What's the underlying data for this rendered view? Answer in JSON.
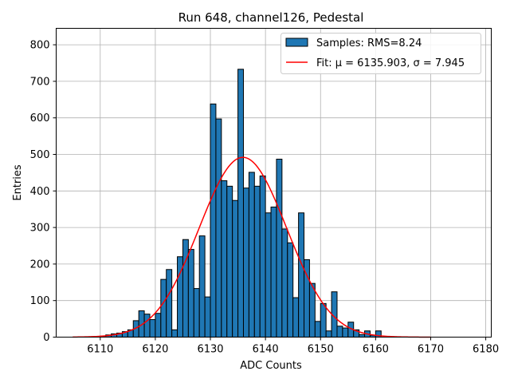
{
  "chart_data": {
    "type": "bar",
    "title": "Run 648, channel126, Pedestal",
    "xlabel": "ADC Counts",
    "ylabel": "Entries",
    "xlim": [
      6102,
      6181
    ],
    "ylim": [
      0,
      845
    ],
    "xticks": [
      6110,
      6120,
      6130,
      6140,
      6150,
      6160,
      6170,
      6180
    ],
    "yticks": [
      0,
      100,
      200,
      300,
      400,
      500,
      600,
      700,
      800
    ],
    "grid": true,
    "legend_position": "top-right",
    "bin_width": 1,
    "colors": {
      "bars": "#1f77b4",
      "bar_edge": "#000000",
      "fit": "#ff0000",
      "grid": "#b0b0b0"
    },
    "histogram": {
      "name": "Samples: RMS=8.24",
      "bins": [
        {
          "x": 6110,
          "value": 3
        },
        {
          "x": 6111,
          "value": 6
        },
        {
          "x": 6112,
          "value": 9
        },
        {
          "x": 6113,
          "value": 11
        },
        {
          "x": 6114,
          "value": 15
        },
        {
          "x": 6115,
          "value": 20
        },
        {
          "x": 6116,
          "value": 45
        },
        {
          "x": 6117,
          "value": 72
        },
        {
          "x": 6118,
          "value": 63
        },
        {
          "x": 6119,
          "value": 48
        },
        {
          "x": 6120,
          "value": 65
        },
        {
          "x": 6121,
          "value": 158
        },
        {
          "x": 6122,
          "value": 185
        },
        {
          "x": 6123,
          "value": 20
        },
        {
          "x": 6124,
          "value": 220
        },
        {
          "x": 6125,
          "value": 267
        },
        {
          "x": 6126,
          "value": 240
        },
        {
          "x": 6127,
          "value": 133
        },
        {
          "x": 6128,
          "value": 277
        },
        {
          "x": 6129,
          "value": 110
        },
        {
          "x": 6130,
          "value": 638
        },
        {
          "x": 6131,
          "value": 597
        },
        {
          "x": 6132,
          "value": 428
        },
        {
          "x": 6133,
          "value": 413
        },
        {
          "x": 6134,
          "value": 374
        },
        {
          "x": 6135,
          "value": 733
        },
        {
          "x": 6136,
          "value": 408
        },
        {
          "x": 6137,
          "value": 451
        },
        {
          "x": 6138,
          "value": 413
        },
        {
          "x": 6139,
          "value": 441
        },
        {
          "x": 6140,
          "value": 340
        },
        {
          "x": 6141,
          "value": 356
        },
        {
          "x": 6142,
          "value": 487
        },
        {
          "x": 6143,
          "value": 296
        },
        {
          "x": 6144,
          "value": 258
        },
        {
          "x": 6145,
          "value": 108
        },
        {
          "x": 6146,
          "value": 340
        },
        {
          "x": 6147,
          "value": 212
        },
        {
          "x": 6148,
          "value": 147
        },
        {
          "x": 6149,
          "value": 43
        },
        {
          "x": 6150,
          "value": 92
        },
        {
          "x": 6151,
          "value": 17
        },
        {
          "x": 6152,
          "value": 124
        },
        {
          "x": 6153,
          "value": 30
        },
        {
          "x": 6154,
          "value": 25
        },
        {
          "x": 6155,
          "value": 41
        },
        {
          "x": 6156,
          "value": 20
        },
        {
          "x": 6157,
          "value": 7
        },
        {
          "x": 6158,
          "value": 17
        },
        {
          "x": 6159,
          "value": 5
        },
        {
          "x": 6160,
          "value": 17
        }
      ]
    },
    "fit": {
      "name": "Fit: μ = 6135.903, σ = 7.945",
      "mu": 6135.903,
      "sigma": 7.945,
      "amplitude": 492,
      "x_range": [
        6105,
        6170
      ]
    }
  }
}
